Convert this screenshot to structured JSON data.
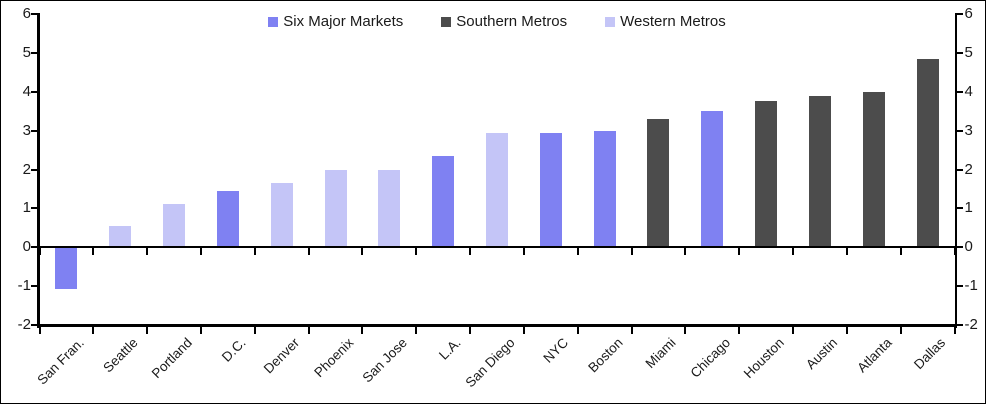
{
  "chart_data": {
    "type": "bar",
    "title": "",
    "categories": [
      "San Fran.",
      "Seattle",
      "Portland",
      "D.C.",
      "Denver",
      "Phoenix",
      "San Jose",
      "L.A.",
      "San Diego",
      "NYC",
      "Boston",
      "Miami",
      "Chicago",
      "Houston",
      "Austin",
      "Atlanta",
      "Dallas"
    ],
    "values": [
      -1.05,
      0.55,
      1.1,
      1.45,
      1.65,
      2.0,
      2.0,
      2.35,
      2.95,
      2.95,
      3.0,
      3.3,
      3.5,
      3.75,
      3.9,
      4.0,
      4.85
    ],
    "point_series": [
      "Six Major Markets",
      "Western Metros",
      "Western Metros",
      "Six Major Markets",
      "Western Metros",
      "Western Metros",
      "Western Metros",
      "Six Major Markets",
      "Western Metros",
      "Six Major Markets",
      "Six Major Markets",
      "Southern Metros",
      "Six Major Markets",
      "Southern Metros",
      "Southern Metros",
      "Southern Metros",
      "Southern Metros"
    ],
    "series": [
      {
        "name": "Six Major Markets",
        "color": "#7f81f2"
      },
      {
        "name": "Southern Metros",
        "color": "#4c4c4c"
      },
      {
        "name": "Western Metros",
        "color": "#c4c5f7"
      }
    ],
    "ylim": [
      -2,
      6
    ],
    "yticks": [
      6,
      5,
      4,
      3,
      2,
      1,
      0,
      -1,
      -2
    ],
    "grid": false,
    "legend_position": "top-center",
    "dual_axis": true,
    "axis_color": "#000000",
    "text_color": "#1a1a1a"
  }
}
